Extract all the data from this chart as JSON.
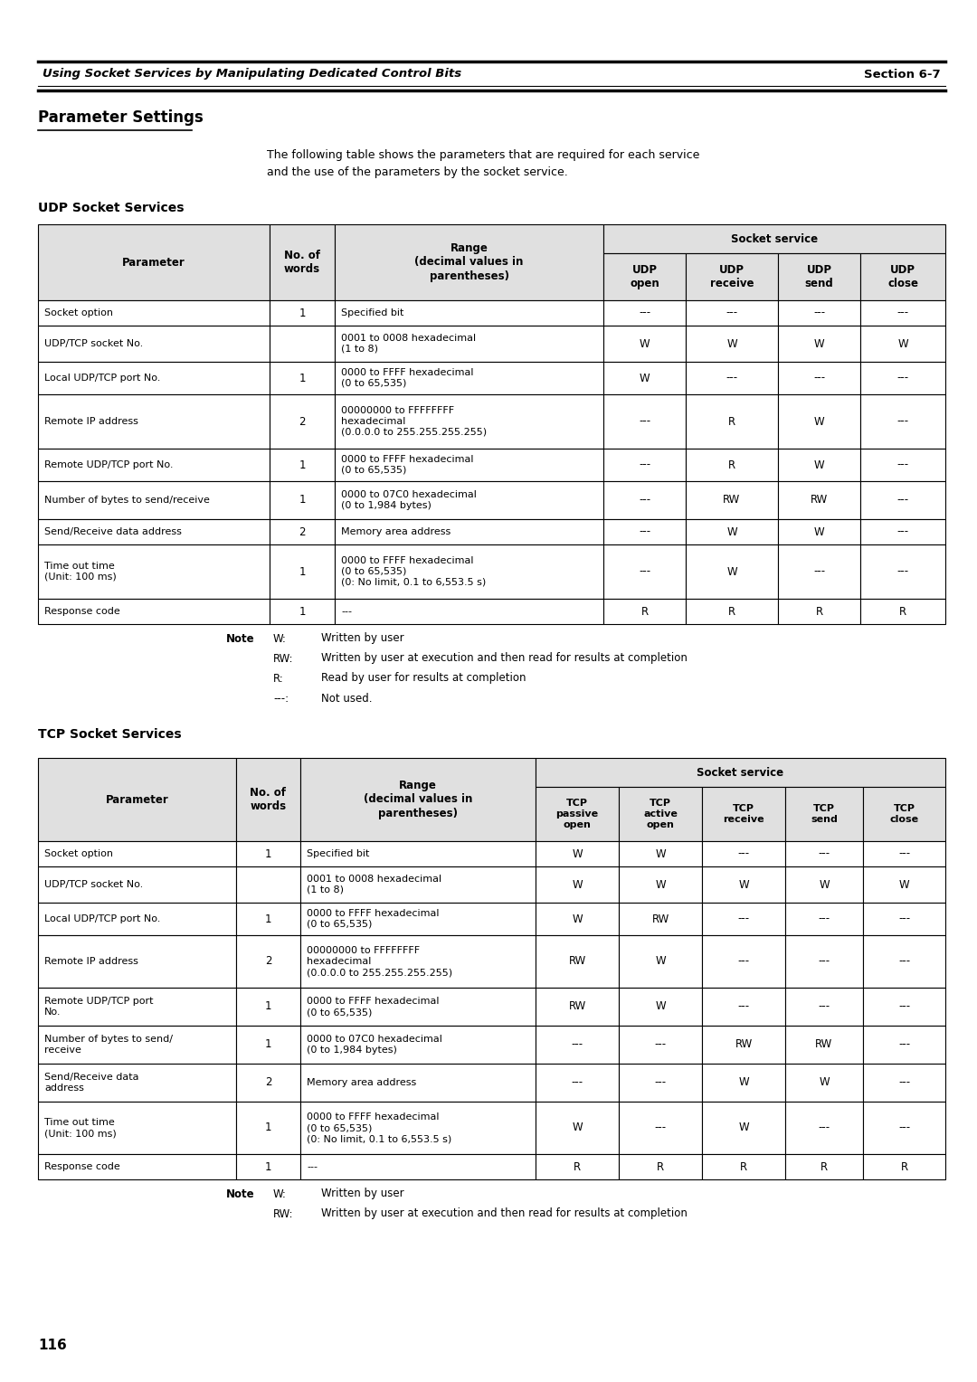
{
  "page_header_left": "Using Socket Services by Manipulating Dedicated Control Bits",
  "page_header_right": "Section 6-7",
  "section_title": "Parameter Settings",
  "intro_text": "The following table shows the parameters that are required for each service\nand the use of the parameters by the socket service.",
  "udp_section_title": "UDP Socket Services",
  "tcp_section_title": "TCP Socket Services",
  "udp_rows": [
    [
      "Socket option",
      "1",
      "Specified bit",
      "---",
      "---",
      "---",
      "---"
    ],
    [
      "UDP/TCP socket No.",
      "",
      "0001 to 0008 hexadecimal\n(1 to 8)",
      "W",
      "W",
      "W",
      "W"
    ],
    [
      "Local UDP/TCP port No.",
      "1",
      "0000 to FFFF hexadecimal\n(0 to 65,535)",
      "W",
      "---",
      "---",
      "---"
    ],
    [
      "Remote IP address",
      "2",
      "00000000 to FFFFFFFF\nhexadecimal\n(0.0.0.0 to 255.255.255.255)",
      "---",
      "R",
      "W",
      "---"
    ],
    [
      "Remote UDP/TCP port No.",
      "1",
      "0000 to FFFF hexadecimal\n(0 to 65,535)",
      "---",
      "R",
      "W",
      "---"
    ],
    [
      "Number of bytes to send/receive",
      "1",
      "0000 to 07C0 hexadecimal\n(0 to 1,984 bytes)",
      "---",
      "RW",
      "RW",
      "---"
    ],
    [
      "Send/Receive data address",
      "2",
      "Memory area address",
      "---",
      "W",
      "W",
      "---"
    ],
    [
      "Time out time\n(Unit: 100 ms)",
      "1",
      "0000 to FFFF hexadecimal\n(0 to 65,535)\n(0: No limit, 0.1 to 6,553.5 s)",
      "---",
      "W",
      "---",
      "---"
    ],
    [
      "Response code",
      "1",
      "---",
      "R",
      "R",
      "R",
      "R"
    ]
  ],
  "tcp_rows": [
    [
      "Socket option",
      "1",
      "Specified bit",
      "W",
      "W",
      "---",
      "---",
      "---"
    ],
    [
      "UDP/TCP socket No.",
      "",
      "0001 to 0008 hexadecimal\n(1 to 8)",
      "W",
      "W",
      "W",
      "W",
      "W"
    ],
    [
      "Local UDP/TCP port No.",
      "1",
      "0000 to FFFF hexadecimal\n(0 to 65,535)",
      "W",
      "RW",
      "---",
      "---",
      "---"
    ],
    [
      "Remote IP address",
      "2",
      "00000000 to FFFFFFFF\nhexadecimal\n(0.0.0.0 to 255.255.255.255)",
      "RW",
      "W",
      "---",
      "---",
      "---"
    ],
    [
      "Remote UDP/TCP port\nNo.",
      "1",
      "0000 to FFFF hexadecimal\n(0 to 65,535)",
      "RW",
      "W",
      "---",
      "---",
      "---"
    ],
    [
      "Number of bytes to send/\nreceive",
      "1",
      "0000 to 07C0 hexadecimal\n(0 to 1,984 bytes)",
      "---",
      "---",
      "RW",
      "RW",
      "---"
    ],
    [
      "Send/Receive data\naddress",
      "2",
      "Memory area address",
      "---",
      "---",
      "W",
      "W",
      "---"
    ],
    [
      "Time out time\n(Unit: 100 ms)",
      "1",
      "0000 to FFFF hexadecimal\n(0 to 65,535)\n(0: No limit, 0.1 to 6,553.5 s)",
      "W",
      "---",
      "W",
      "---",
      "---"
    ],
    [
      "Response code",
      "1",
      "---",
      "R",
      "R",
      "R",
      "R",
      "R"
    ]
  ],
  "page_number": "116",
  "bg_color": "#ffffff",
  "header_bg": "#e0e0e0"
}
